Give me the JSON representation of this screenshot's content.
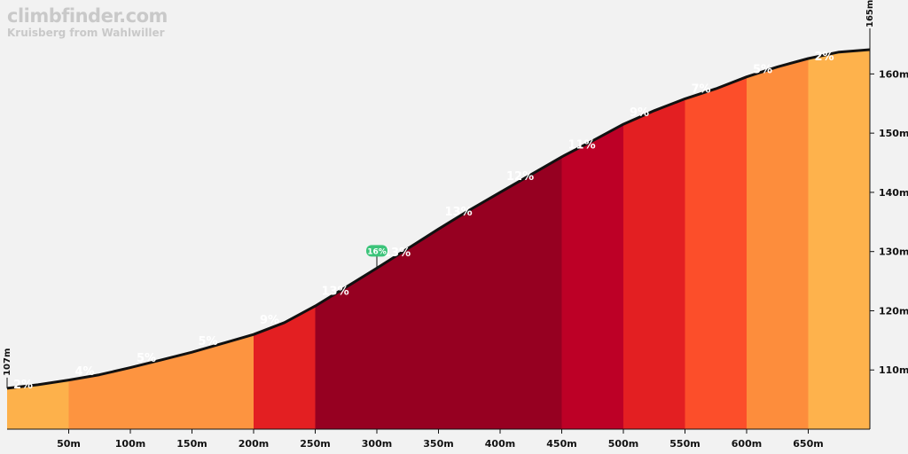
{
  "header": {
    "brand": "climbfinder.com",
    "subtitle": "Kruisberg from Wahlwiller"
  },
  "chart_data": {
    "type": "area",
    "title": "",
    "xlabel": "",
    "ylabel": "",
    "xlim": [
      0,
      700
    ],
    "ylim": [
      100,
      165
    ],
    "x_ticks": [
      50,
      100,
      150,
      200,
      250,
      300,
      350,
      400,
      450,
      500,
      550,
      600,
      650
    ],
    "x_tick_labels": [
      "50m",
      "100m",
      "150m",
      "200m",
      "250m",
      "300m",
      "350m",
      "400m",
      "450m",
      "500m",
      "550m",
      "600m",
      "650m"
    ],
    "y_ticks": [
      110,
      120,
      130,
      140,
      150,
      160
    ],
    "y_tick_labels": [
      "110m",
      "120m",
      "130m",
      "140m",
      "150m",
      "160m"
    ],
    "start_label": "107m",
    "end_label": "165m",
    "profile": {
      "x": [
        0,
        25,
        50,
        75,
        100,
        125,
        150,
        175,
        200,
        225,
        250,
        275,
        300,
        325,
        350,
        375,
        400,
        425,
        450,
        475,
        500,
        525,
        550,
        575,
        600,
        625,
        650,
        675,
        700
      ],
      "y": [
        106.9,
        107.5,
        108.3,
        109.2,
        110.4,
        111.7,
        113.0,
        114.5,
        116.0,
        118.0,
        120.8,
        124.0,
        127.2,
        130.5,
        133.8,
        137.0,
        140.0,
        143.0,
        146.0,
        148.7,
        151.5,
        153.8,
        155.8,
        157.5,
        159.5,
        161.2,
        162.6,
        163.7,
        164.1
      ]
    },
    "segments": [
      {
        "from": 0,
        "to": 50,
        "grade": "2%",
        "color": "#fdb14b",
        "label_elev": 107.5
      },
      {
        "from": 50,
        "to": 100,
        "grade": "4%",
        "color": "#fd9440",
        "label_elev": 109.7
      },
      {
        "from": 100,
        "to": 150,
        "grade": "5%",
        "color": "#fd9440",
        "label_elev": 112.0
      },
      {
        "from": 150,
        "to": 200,
        "grade": "5%",
        "color": "#fd9440",
        "label_elev": 114.8
      },
      {
        "from": 200,
        "to": 250,
        "grade": "9%",
        "color": "#e31f22",
        "label_elev": 118.4
      },
      {
        "from": 250,
        "to": 300,
        "grade": "13%",
        "color": "#960021",
        "label_elev": 123.3
      },
      {
        "from": 300,
        "to": 350,
        "grade": "13%",
        "color": "#960021",
        "label_elev": 129.8
      },
      {
        "from": 350,
        "to": 400,
        "grade": "13%",
        "color": "#960021",
        "label_elev": 136.7
      },
      {
        "from": 400,
        "to": 450,
        "grade": "12%",
        "color": "#960021",
        "label_elev": 142.7
      },
      {
        "from": 450,
        "to": 500,
        "grade": "11%",
        "color": "#bd0026",
        "label_elev": 148.0
      },
      {
        "from": 500,
        "to": 550,
        "grade": "9%",
        "color": "#e31f22",
        "label_elev": 153.5
      },
      {
        "from": 550,
        "to": 600,
        "grade": "7%",
        "color": "#fc4e2a",
        "label_elev": 157.4
      },
      {
        "from": 600,
        "to": 650,
        "grade": "5%",
        "color": "#fd8d3c",
        "label_elev": 160.7
      },
      {
        "from": 650,
        "to": 700,
        "grade": "2%",
        "color": "#feb24c",
        "label_elev": 162.9
      }
    ],
    "max_marker": {
      "x": 300,
      "elev": 127.2,
      "label": "16%",
      "color": "#3cc47a"
    }
  }
}
